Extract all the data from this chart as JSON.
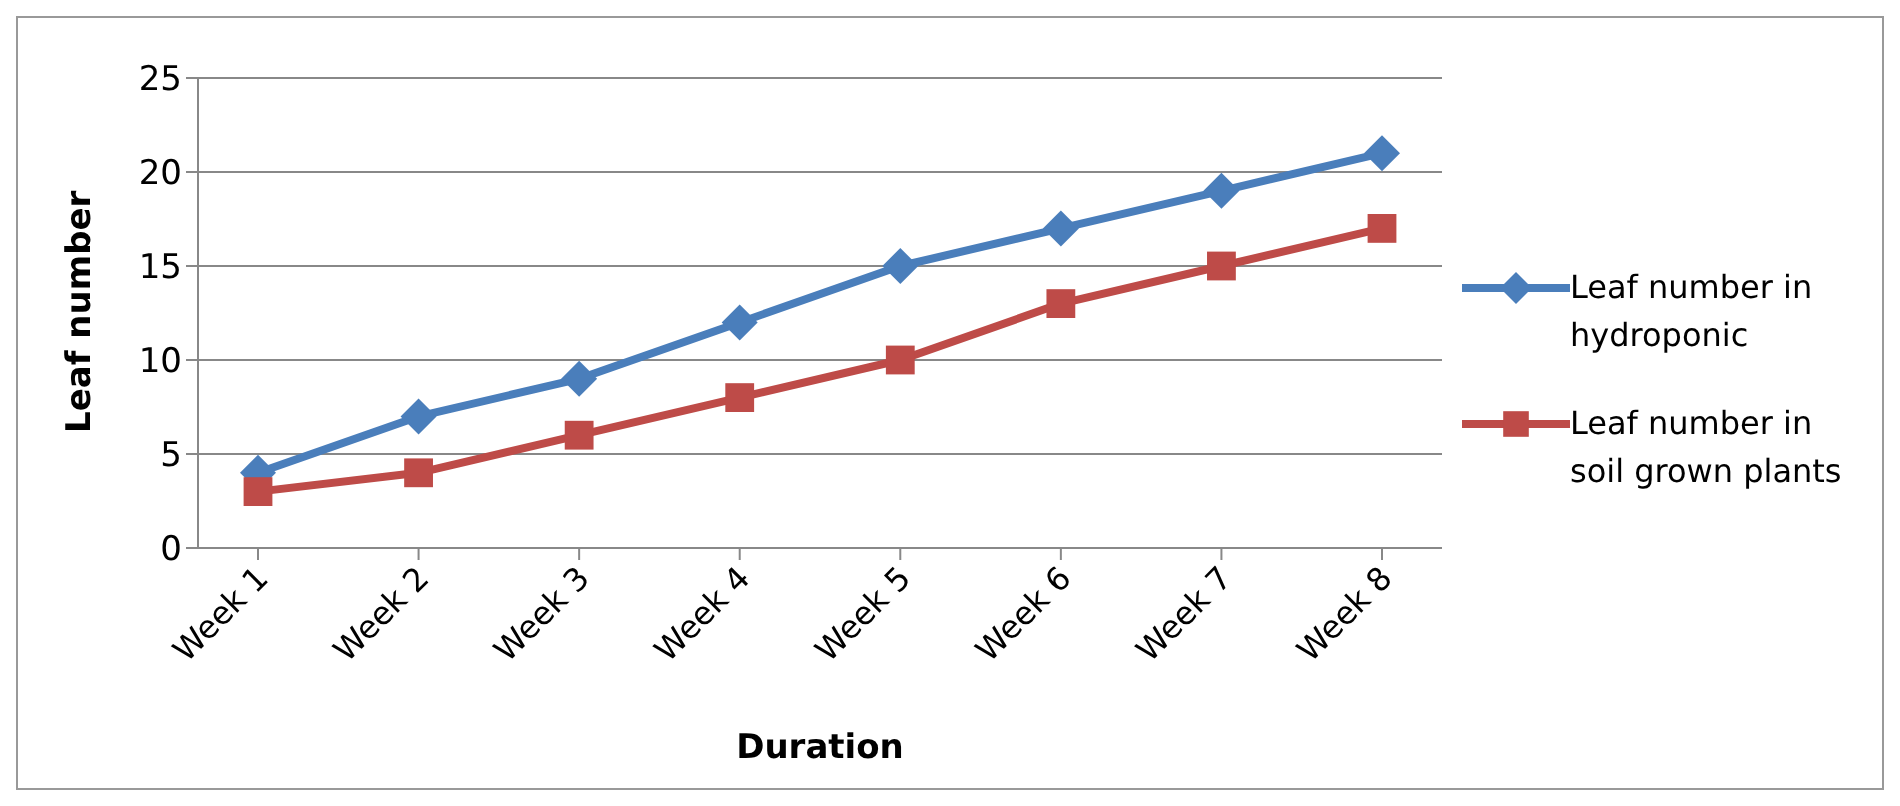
{
  "chart_data": {
    "type": "line",
    "xlabel": "Duration",
    "ylabel": "Leaf number",
    "categories": [
      "Week 1",
      "Week 2",
      "Week 3",
      "Week 4",
      "Week 5",
      "Week 6",
      "Week 7",
      "Week 8"
    ],
    "series": [
      {
        "name": "Leaf number in hydroponic",
        "color": "#4a7ebb",
        "marker": "diamond",
        "values": [
          4,
          7,
          9,
          12,
          15,
          17,
          19,
          21
        ]
      },
      {
        "name": "Leaf number in soil grown plants",
        "color": "#be4b48",
        "marker": "square",
        "values": [
          3,
          4,
          6,
          8,
          10,
          13,
          15,
          17
        ]
      }
    ],
    "ylim": [
      0,
      25
    ],
    "yticks": [
      0,
      5,
      10,
      15,
      20,
      25
    ],
    "grid": "y",
    "legend": "right",
    "line_style": "solid"
  }
}
